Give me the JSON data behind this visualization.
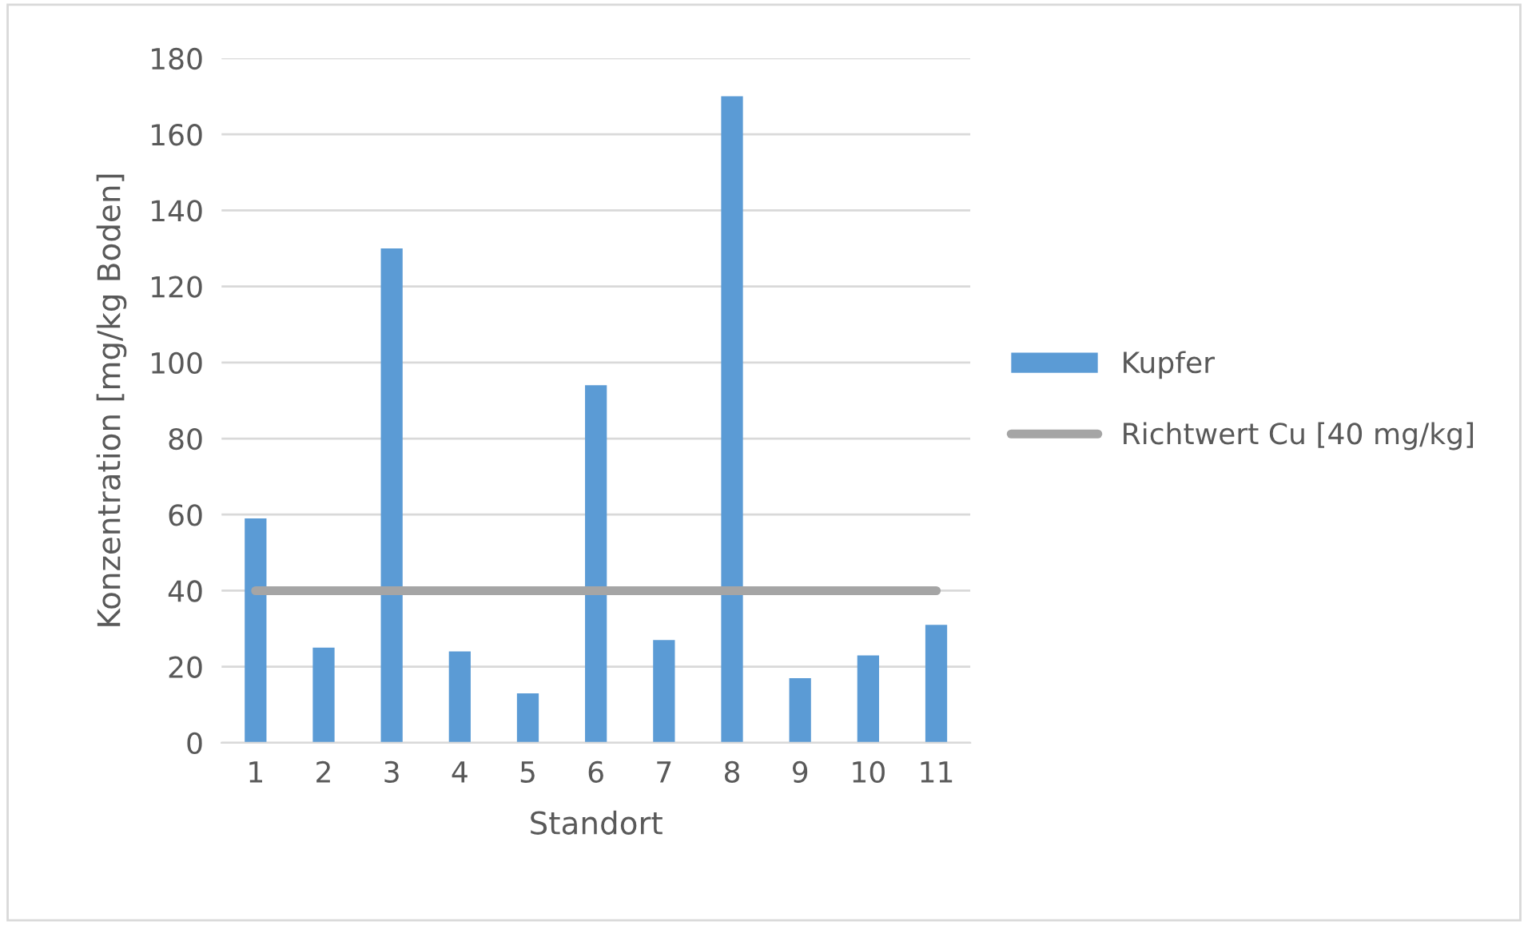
{
  "chart_data": {
    "type": "bar",
    "xlabel": "Standort",
    "ylabel": "Konzentration [mg/kg Boden]",
    "categories": [
      "1",
      "2",
      "3",
      "4",
      "5",
      "6",
      "7",
      "8",
      "9",
      "10",
      "11"
    ],
    "series": [
      {
        "name": "Kupfer",
        "color": "#5b9bd5",
        "values": [
          59,
          25,
          130,
          24,
          13,
          94,
          27,
          170,
          17,
          23,
          31
        ]
      },
      {
        "name": "Richtwert Cu [40 mg/kg]",
        "type": "line",
        "color": "#a5a5a5",
        "values": [
          40,
          40,
          40,
          40,
          40,
          40,
          40,
          40,
          40,
          40,
          40
        ]
      }
    ],
    "ylim": [
      0,
      180
    ],
    "yticks": [
      0,
      20,
      40,
      60,
      80,
      100,
      120,
      140,
      160,
      180
    ],
    "grid": "y",
    "legend": "right"
  }
}
